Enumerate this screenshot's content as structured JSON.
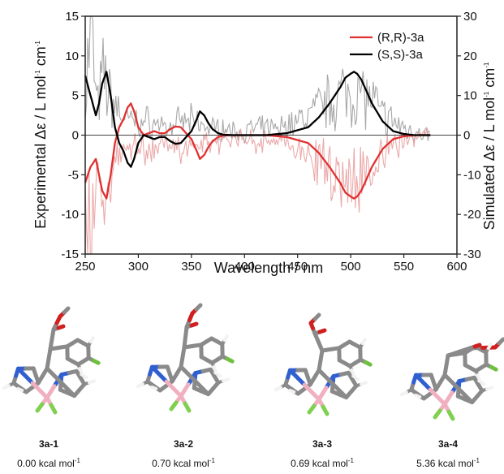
{
  "chart_data": {
    "type": "line",
    "xlabel": "Wavelength / nm",
    "ylabel_left": "Experimental Δε / L mol-1 cm-1",
    "ylabel_right": "Simulated Δε / L mol-1 cm-1",
    "xlim": [
      250,
      600
    ],
    "ylim_left": [
      -15,
      15
    ],
    "ylim_right": [
      -30,
      30
    ],
    "x_ticks": [
      "250",
      "300",
      "350",
      "400",
      "450",
      "500",
      "550",
      "600"
    ],
    "y_ticks_left": [
      "15",
      "10",
      "5",
      "0",
      "-5",
      "-10",
      "-15"
    ],
    "y_ticks_right": [
      "30",
      "20",
      "10",
      "0",
      "-10",
      "-20",
      "-30"
    ],
    "legend_position": "top-right",
    "series": [
      {
        "name": "(R,R)-3a",
        "axis": "right",
        "color": "#e03030",
        "x": [
          250,
          255,
          260,
          263,
          266,
          270,
          274,
          278,
          282,
          286,
          290,
          293,
          296,
          300,
          305,
          310,
          315,
          320,
          325,
          330,
          335,
          340,
          345,
          350,
          355,
          358,
          362,
          366,
          370,
          375,
          380,
          390,
          400,
          420,
          440,
          460,
          470,
          480,
          490,
          495,
          500,
          503,
          506,
          510,
          515,
          520,
          530,
          540,
          550,
          560,
          575
        ],
        "values": [
          -12,
          -8,
          -6,
          -10,
          -14,
          -16,
          -10,
          -2,
          2,
          4,
          7,
          8,
          6,
          2,
          0,
          0.5,
          1,
          0.5,
          0.5,
          1.5,
          2.2,
          2,
          0.5,
          -1,
          -4,
          -6,
          -5,
          -3,
          -1.5,
          -0.5,
          -0.1,
          0,
          0,
          0,
          -0.5,
          -2,
          -4.5,
          -8,
          -12,
          -14.5,
          -15.5,
          -16,
          -15.5,
          -14,
          -11,
          -8,
          -3.5,
          -1,
          -0.3,
          0,
          0
        ]
      },
      {
        "name": "(S,S)-3a",
        "axis": "right",
        "color": "#000000",
        "x": [
          250,
          255,
          260,
          263,
          266,
          270,
          274,
          278,
          282,
          286,
          290,
          293,
          296,
          300,
          305,
          310,
          315,
          320,
          325,
          330,
          335,
          340,
          345,
          350,
          355,
          358,
          362,
          366,
          370,
          375,
          380,
          390,
          400,
          420,
          440,
          460,
          470,
          480,
          490,
          495,
          500,
          503,
          506,
          510,
          515,
          520,
          530,
          540,
          550,
          560,
          575
        ],
        "values": [
          15,
          10,
          5,
          8,
          13,
          16,
          10,
          2,
          -2,
          -4,
          -7,
          -8,
          -6,
          -2,
          0,
          -0.5,
          -1,
          -0.5,
          -0.5,
          -1.5,
          -2.2,
          -2,
          -0.5,
          1,
          4,
          6,
          5,
          3,
          1.5,
          0.5,
          0.1,
          0,
          0,
          0,
          0.5,
          2,
          4.5,
          8,
          12,
          14.5,
          15.5,
          16,
          15.5,
          14,
          11,
          8,
          3.5,
          1,
          0.3,
          0,
          0
        ]
      },
      {
        "name": "",
        "axis": "left",
        "color": "#999999",
        "x": [
          250,
          253,
          256,
          258,
          260,
          262,
          265,
          268,
          272,
          276,
          280,
          285,
          290,
          295,
          300,
          305,
          310,
          320,
          330,
          340,
          350,
          360,
          370,
          380,
          390,
          400,
          410,
          420,
          430,
          440,
          450,
          460,
          470,
          480,
          490,
          500,
          510,
          520,
          530,
          540,
          550,
          560,
          570,
          575
        ],
        "values": [
          5,
          12,
          15,
          10,
          6,
          4,
          7,
          9,
          6,
          5,
          4,
          3,
          2,
          2.5,
          1.5,
          2,
          2,
          1.5,
          1,
          2,
          2,
          1.5,
          1,
          1,
          0.5,
          0.5,
          1,
          1,
          1,
          1.5,
          2,
          3,
          4,
          5,
          6,
          6.5,
          6,
          5,
          3,
          2,
          1,
          0.5,
          0.2,
          0
        ]
      },
      {
        "name": "",
        "axis": "left",
        "color": "#e89a9a",
        "x": [
          250,
          253,
          256,
          258,
          260,
          262,
          265,
          268,
          272,
          276,
          280,
          285,
          290,
          295,
          300,
          305,
          310,
          320,
          330,
          340,
          350,
          360,
          370,
          380,
          390,
          400,
          410,
          420,
          430,
          440,
          450,
          460,
          470,
          480,
          490,
          500,
          510,
          520,
          530,
          540,
          550,
          560,
          570,
          575
        ],
        "values": [
          -5,
          -12,
          -15,
          -10,
          -6,
          -4,
          -7,
          -9,
          -6,
          -5,
          -4,
          -3,
          -2,
          -2.5,
          -1.5,
          -2,
          -2,
          -1.5,
          -1,
          -2,
          -2,
          -1.5,
          -1,
          -1,
          -0.5,
          -0.5,
          -1,
          -1,
          -1,
          -1.5,
          -2,
          -3,
          -4,
          -5,
          -6,
          -6.5,
          -6,
          -5,
          -3,
          -2,
          -1,
          -0.5,
          -0.2,
          0
        ]
      }
    ]
  },
  "conformers": [
    {
      "name": "3a-1",
      "energy": "0.00 kcal mol",
      "unit_sup": "-1"
    },
    {
      "name": "3a-2",
      "energy": "0.70 kcal mol",
      "unit_sup": "-1"
    },
    {
      "name": "3a-3",
      "energy": "0.69 kcal mol",
      "unit_sup": "-1"
    },
    {
      "name": "3a-4",
      "energy": "5.36 kcal mol",
      "unit_sup": "-1"
    }
  ],
  "axis_text": {
    "xlabel": "Wavelength / nm",
    "ylabel_left_main": "Experimental Δε / L mol",
    "ylabel_left_sup1": "-1",
    "ylabel_left_mid": " cm",
    "ylabel_left_sup2": "-1",
    "ylabel_right_main": "Simulated Δε / L mol",
    "ylabel_right_sup1": "-1",
    "ylabel_right_mid": " cm",
    "ylabel_right_sup2": "-1"
  },
  "colors": {
    "rr": "#e03030",
    "ss": "#000000",
    "exp_gray": "#9a9a9a",
    "exp_pink": "#e89a9a",
    "carbon": "#8a8a8a",
    "hydrogen": "#f2f2f2",
    "nitrogen": "#3060d0",
    "oxygen": "#d02020",
    "boron": "#f0b0c0",
    "fluorine": "#80d050",
    "chlorine": "#70c040"
  }
}
